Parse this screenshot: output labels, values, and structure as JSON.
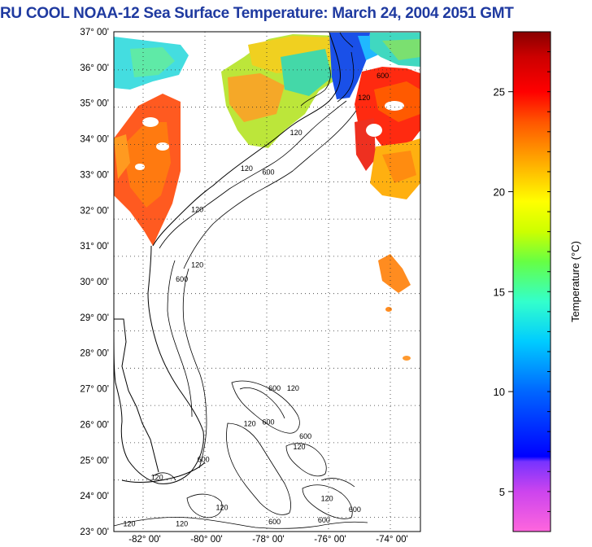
{
  "title": "RU COOL  NOAA-12  Sea Surface Temperature:  March 24, 2004 2051 GMT",
  "map": {
    "lat_labels": [
      "37° 00'",
      "36° 00'",
      "35° 00'",
      "34° 00'",
      "33° 00'",
      "32° 00'",
      "31° 00'",
      "30° 00'",
      "29° 00'",
      "28° 00'",
      "27° 00'",
      "26° 00'",
      "25° 00'",
      "24° 00'",
      "23° 00'"
    ],
    "lon_labels": [
      "-82° 00'",
      "-80° 00'",
      "-78° 00'",
      "-76° 00'",
      "-74° 00'"
    ],
    "contour_labels": [
      {
        "text": "120",
        "lon": -77.1,
        "lat": 34.1
      },
      {
        "text": "120",
        "lon": -78.7,
        "lat": 33.1
      },
      {
        "text": "600",
        "lon": -78.0,
        "lat": 33.0
      },
      {
        "text": "120",
        "lon": -80.3,
        "lat": 31.95
      },
      {
        "text": "120",
        "lon": -74.9,
        "lat": 35.08
      },
      {
        "text": "600",
        "lon": -74.3,
        "lat": 35.7
      },
      {
        "text": "120",
        "lon": -80.3,
        "lat": 30.4
      },
      {
        "text": "600",
        "lon": -80.8,
        "lat": 30.0
      },
      {
        "text": "600",
        "lon": -77.8,
        "lat": 26.95
      },
      {
        "text": "120",
        "lon": -77.2,
        "lat": 26.95
      },
      {
        "text": "600",
        "lon": -78.0,
        "lat": 26.0
      },
      {
        "text": "120",
        "lon": -78.6,
        "lat": 25.95
      },
      {
        "text": "600",
        "lon": -76.8,
        "lat": 25.6
      },
      {
        "text": "120",
        "lon": -77.0,
        "lat": 25.3
      },
      {
        "text": "600",
        "lon": -80.1,
        "lat": 24.95
      },
      {
        "text": "120",
        "lon": -81.6,
        "lat": 24.45
      },
      {
        "text": "120",
        "lon": -79.5,
        "lat": 23.6
      },
      {
        "text": "120",
        "lon": -76.1,
        "lat": 23.85
      },
      {
        "text": "600",
        "lon": -75.2,
        "lat": 23.55
      },
      {
        "text": "600",
        "lon": -77.8,
        "lat": 23.2
      },
      {
        "text": "600",
        "lon": -76.2,
        "lat": 23.25
      },
      {
        "text": "120",
        "lon": -82.5,
        "lat": 23.15
      },
      {
        "text": "120",
        "lon": -80.8,
        "lat": 23.15
      }
    ]
  },
  "colorbar": {
    "label": "Temperature (°C)",
    "ticks": [
      "5",
      "10",
      "15",
      "20",
      "25"
    ],
    "min": 3,
    "max": 28
  }
}
